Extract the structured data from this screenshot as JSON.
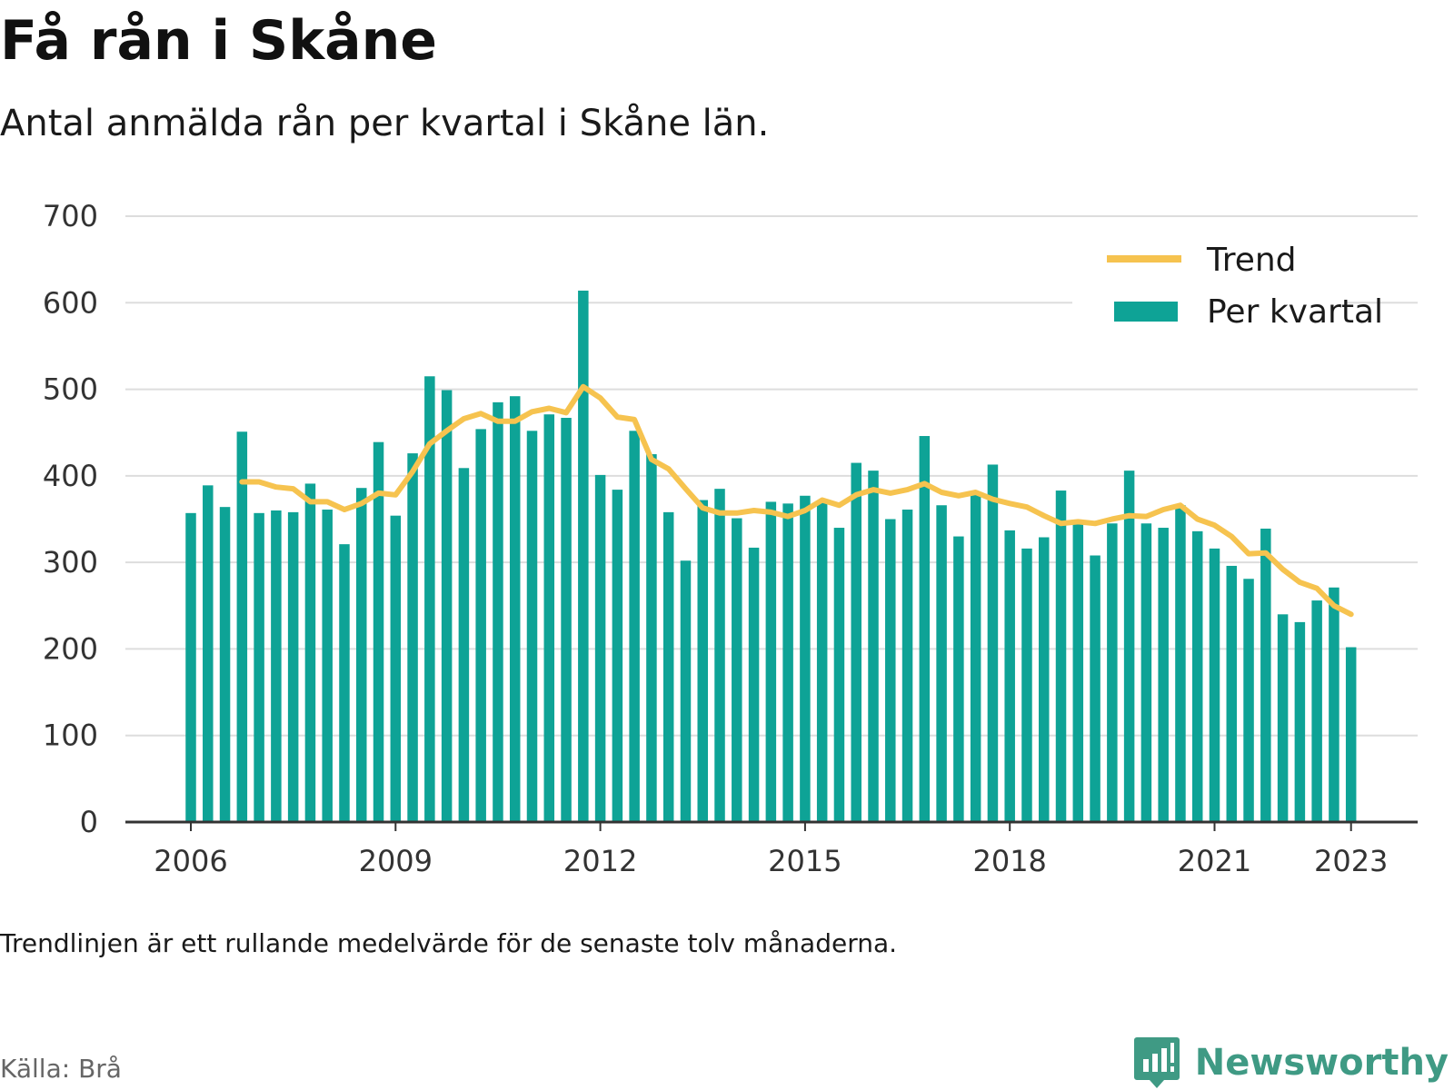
{
  "title": "Få rån i Skåne",
  "subtitle": "Antal anmälda rån per kvartal i Skåne län.",
  "note": "Trendlinjen är ett rullande medelvärde för de senaste tolv månaderna.",
  "source": "Källa: Brå",
  "brand": {
    "name": "Newsworthy",
    "icon": "newsworthy-logo-icon",
    "color": "#3f9a84"
  },
  "colors": {
    "bar": "#0ea396",
    "trend": "#f6c34f",
    "grid": "#dddddd",
    "axis": "#333333"
  },
  "chart_data": {
    "type": "bar",
    "ylim": [
      0,
      700
    ],
    "yticks": [
      0,
      100,
      200,
      300,
      400,
      500,
      600,
      700
    ],
    "xticks": [
      "2006",
      "2009",
      "2012",
      "2015",
      "2018",
      "2021",
      "2023"
    ],
    "grid": true,
    "legend_position": "top-right",
    "series": [
      {
        "name": "Per kvartal",
        "kind": "bar",
        "start": "2006 Q1",
        "values": [
          357,
          389,
          364,
          451,
          357,
          360,
          358,
          391,
          361,
          321,
          386,
          439,
          354,
          426,
          515,
          499,
          409,
          454,
          485,
          492,
          452,
          471,
          467,
          614,
          401,
          384,
          452,
          425,
          358,
          302,
          372,
          385,
          351,
          317,
          370,
          368,
          377,
          369,
          340,
          415,
          406,
          350,
          361,
          446,
          366,
          330,
          378,
          413,
          337,
          316,
          329,
          383,
          345,
          308,
          345,
          406,
          345,
          340,
          366,
          336,
          316,
          296,
          281,
          339,
          240,
          231,
          256,
          271,
          202
        ]
      },
      {
        "name": "Trend",
        "kind": "line",
        "start": "2006 Q4",
        "values": [
          393,
          393,
          387,
          385,
          370,
          370,
          361,
          368,
          380,
          378,
          405,
          437,
          452,
          466,
          472,
          463,
          463,
          474,
          478,
          473,
          503,
          490,
          468,
          465,
          419,
          408,
          385,
          363,
          357,
          357,
          360,
          358,
          353,
          360,
          372,
          366,
          378,
          384,
          380,
          384,
          391,
          381,
          377,
          381,
          373,
          368,
          364,
          354,
          345,
          347,
          345,
          350,
          354,
          353,
          361,
          366,
          350,
          343,
          330,
          310,
          311,
          292,
          277,
          270,
          250,
          240
        ]
      }
    ]
  }
}
